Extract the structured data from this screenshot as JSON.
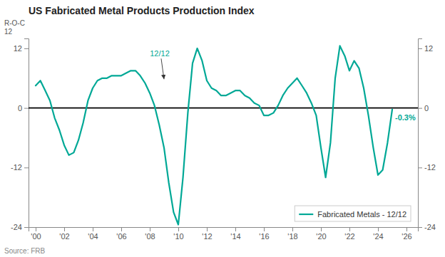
{
  "chart_data": {
    "type": "line",
    "title": "US Fabricated Metal Products Production Index",
    "ylabel": [
      "R-O-C",
      "12"
    ],
    "source": "Source: FRB",
    "x": [
      2000.0,
      2000.33,
      2000.67,
      2001.0,
      2001.33,
      2001.67,
      2002.0,
      2002.33,
      2002.67,
      2003.0,
      2003.33,
      2003.67,
      2004.0,
      2004.33,
      2004.67,
      2005.0,
      2005.33,
      2005.67,
      2006.0,
      2006.33,
      2006.67,
      2007.0,
      2007.33,
      2007.67,
      2008.0,
      2008.33,
      2008.67,
      2009.0,
      2009.33,
      2009.67,
      2010.0,
      2010.33,
      2010.67,
      2011.0,
      2011.33,
      2011.67,
      2012.0,
      2012.33,
      2012.67,
      2013.0,
      2013.33,
      2013.67,
      2014.0,
      2014.33,
      2014.67,
      2015.0,
      2015.33,
      2015.67,
      2016.0,
      2016.33,
      2016.67,
      2017.0,
      2017.33,
      2017.67,
      2018.0,
      2018.33,
      2018.67,
      2019.0,
      2019.33,
      2019.67,
      2020.0,
      2020.33,
      2020.67,
      2021.0,
      2021.33,
      2021.67,
      2022.0,
      2022.33,
      2022.67,
      2023.0,
      2023.33,
      2023.67,
      2024.0,
      2024.33,
      2024.67,
      2025.0
    ],
    "series": [
      {
        "name": "Fabricated Metals - 12/12",
        "color": "#00A896",
        "values": [
          4.5,
          5.5,
          3.5,
          1.5,
          -2.0,
          -4.5,
          -7.5,
          -9.5,
          -9.0,
          -6.5,
          -3.0,
          1.5,
          4.0,
          5.5,
          6.0,
          6.0,
          6.5,
          6.5,
          6.5,
          7.0,
          7.5,
          7.5,
          6.5,
          5.0,
          3.0,
          0.5,
          -3.5,
          -8.0,
          -15.0,
          -21.0,
          -23.5,
          -14.0,
          -1.0,
          9.0,
          12.0,
          9.5,
          5.5,
          4.0,
          3.5,
          2.5,
          2.5,
          3.0,
          3.5,
          3.5,
          2.5,
          2.0,
          1.0,
          0.5,
          -1.5,
          -1.5,
          -1.0,
          0.5,
          2.5,
          4.0,
          5.0,
          6.0,
          4.5,
          3.0,
          1.0,
          -1.5,
          -8.0,
          -14.0,
          -7.0,
          6.0,
          12.5,
          10.5,
          7.5,
          9.5,
          8.0,
          4.0,
          -1.5,
          -8.0,
          -13.5,
          -12.5,
          -7.0,
          -0.3
        ]
      }
    ],
    "xlim": [
      1999.5,
      2026.8
    ],
    "xticks": [
      {
        "value": 2000,
        "label": "'00"
      },
      {
        "value": 2002,
        "label": "'02"
      },
      {
        "value": 2004,
        "label": "'04"
      },
      {
        "value": 2006,
        "label": "'06"
      },
      {
        "value": 2008,
        "label": "'08"
      },
      {
        "value": 2010,
        "label": "'10"
      },
      {
        "value": 2012,
        "label": "'12"
      },
      {
        "value": 2014,
        "label": "'14"
      },
      {
        "value": 2016,
        "label": "'16"
      },
      {
        "value": 2018,
        "label": "'18"
      },
      {
        "value": 2020,
        "label": "'20"
      },
      {
        "value": 2022,
        "label": "'22"
      },
      {
        "value": 2024,
        "label": "'24"
      },
      {
        "value": 2026,
        "label": "'26"
      }
    ],
    "ylim": [
      -24,
      14
    ],
    "yticks": [
      -24,
      -12,
      0,
      12
    ],
    "y2lim": [
      -24,
      14
    ],
    "y2ticks": [
      -24,
      -12,
      0,
      12
    ],
    "annotations": [
      {
        "text": "12/12",
        "x": 2009.0,
        "y": 5.5,
        "arrow": true
      },
      {
        "text": "-0.3%",
        "x": 2025.0,
        "y": -0.3
      }
    ],
    "legend": "lower right",
    "grid": false
  }
}
